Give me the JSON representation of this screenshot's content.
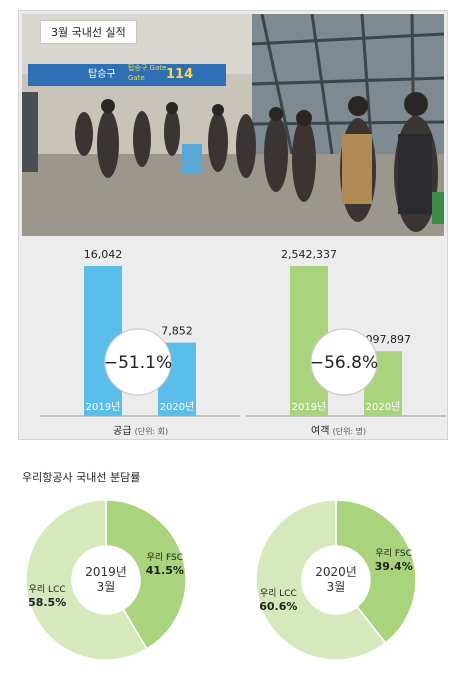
{
  "photo": {
    "tag": "3월 국내선 실적",
    "sign": {
      "title_ko": "탑승구",
      "gate_line1": "탑승구 Gate",
      "gate_line2": "Gate",
      "number": "114"
    }
  },
  "supply": {
    "caption": "공급",
    "unit": "(단위: 회)",
    "change": "−51.1%",
    "colors": {
      "bar": "#5bbde9"
    }
  },
  "passengers": {
    "caption": "여객",
    "unit": "(단위: 명)",
    "change": "−56.8%",
    "colors": {
      "bar": "#a9d37d"
    }
  },
  "share": {
    "title": "우리항공사 국내선 분담률"
  },
  "chart_data": [
    {
      "type": "bar",
      "categories": [
        "2019년",
        "2020년"
      ],
      "values": [
        16042,
        7852
      ],
      "value_labels": [
        "16,042",
        "7,852"
      ],
      "title": "공급",
      "ylabel": "(단위: 회)"
    },
    {
      "type": "bar",
      "categories": [
        "2019년",
        "2020년"
      ],
      "values": [
        2542337,
        1097897
      ],
      "value_labels": [
        "2,542,337",
        "1,097,897"
      ],
      "title": "여객",
      "ylabel": "(단위: 명)"
    },
    {
      "type": "pie",
      "center_label": [
        "2019년",
        "3월"
      ],
      "slices": [
        {
          "label": "우리 FSC",
          "value": 41.5,
          "display": "41.5%",
          "color": "#a9d37d"
        },
        {
          "label": "우리 LCC",
          "value": 58.5,
          "display": "58.5%",
          "color": "#d6e9bd"
        }
      ]
    },
    {
      "type": "pie",
      "center_label": [
        "2020년",
        "3월"
      ],
      "slices": [
        {
          "label": "우리 FSC",
          "value": 39.4,
          "display": "39.4%",
          "color": "#a9d37d"
        },
        {
          "label": "우리 LCC",
          "value": 60.6,
          "display": "60.6%",
          "color": "#d6e9bd"
        }
      ]
    }
  ]
}
